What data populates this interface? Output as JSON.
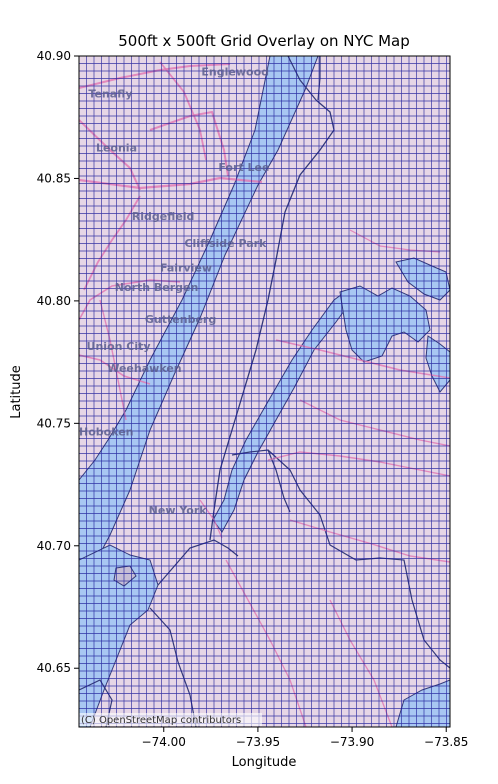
{
  "chart_data": {
    "type": "map",
    "title": "500ft x 500ft Grid Overlay on NYC Map",
    "xlabel": "Longitude",
    "ylabel": "Latitude",
    "xlim": [
      -74.045,
      -73.848
    ],
    "ylim": [
      40.626,
      40.9
    ],
    "x_ticks": [
      {
        "value": -74.0,
        "label": "−74.00"
      },
      {
        "value": -73.95,
        "label": "−73.95"
      },
      {
        "value": -73.9,
        "label": "−73.90"
      },
      {
        "value": -73.85,
        "label": "−73.85"
      }
    ],
    "y_ticks": [
      {
        "value": 40.65,
        "label": "40.65"
      },
      {
        "value": 40.7,
        "label": "40.70"
      },
      {
        "value": 40.75,
        "label": "40.75"
      },
      {
        "value": 40.8,
        "label": "40.80"
      },
      {
        "value": 40.85,
        "label": "40.85"
      },
      {
        "value": 40.9,
        "label": "40.90"
      }
    ],
    "grid": {
      "cell_size_ft": 500,
      "color": "#1a1a99"
    },
    "attribution": "(C) OpenStreetMap contributors",
    "place_labels": [
      {
        "text": "Englewood",
        "lon": -73.98,
        "lat": 40.892
      },
      {
        "text": "Tenafly",
        "lon": -74.04,
        "lat": 40.883
      },
      {
        "text": "Leonia",
        "lon": -74.036,
        "lat": 40.861
      },
      {
        "text": "Fort Lee",
        "lon": -73.971,
        "lat": 40.853
      },
      {
        "text": "Ridgefield",
        "lon": -74.017,
        "lat": 40.833
      },
      {
        "text": "Cliffside Park",
        "lon": -73.989,
        "lat": 40.822
      },
      {
        "text": "Fairview",
        "lon": -74.002,
        "lat": 40.812
      },
      {
        "text": "North Bergen",
        "lon": -74.026,
        "lat": 40.804
      },
      {
        "text": "Guttenberg",
        "lon": -74.01,
        "lat": 40.791
      },
      {
        "text": "Union City",
        "lon": -74.041,
        "lat": 40.78
      },
      {
        "text": "Weehawken",
        "lon": -74.03,
        "lat": 40.771
      },
      {
        "text": "Hoboken",
        "lon": -74.045,
        "lat": 40.745
      },
      {
        "text": "New York",
        "lon": -74.008,
        "lat": 40.713
      }
    ],
    "colors": {
      "land": "#e6d6e6",
      "water": "#a8c7f2",
      "grid": "#1a1a99",
      "roads": "#e07ab4",
      "shoreline": "#343a7a"
    }
  }
}
